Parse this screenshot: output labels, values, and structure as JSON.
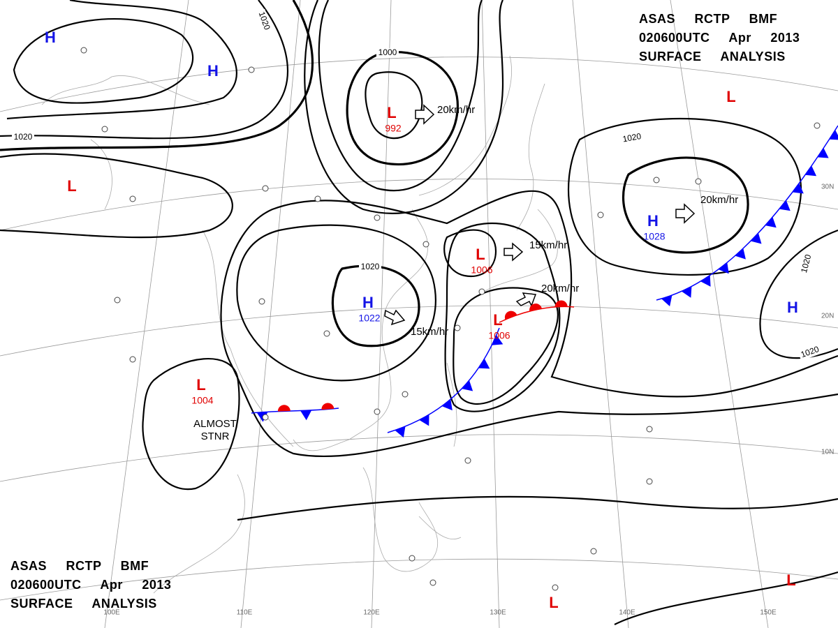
{
  "header": {
    "line1": "ASAS RCTP BMF",
    "line2": "020600UTC Apr 2013",
    "line3": "SURFACE ANALYSIS"
  },
  "centers": [
    {
      "symbol": "H"
    },
    {
      "symbol": "H"
    },
    {
      "symbol": "L",
      "pressure": 992
    },
    {
      "symbol": "L"
    },
    {
      "symbol": "L"
    },
    {
      "symbol": "L",
      "pressure": 1006
    },
    {
      "symbol": "H",
      "pressure": 1022
    },
    {
      "symbol": "L",
      "pressure": 1006
    },
    {
      "symbol": "H",
      "pressure": 1028
    },
    {
      "symbol": "L",
      "pressure": 1004
    },
    {
      "symbol": "H"
    },
    {
      "symbol": "L"
    },
    {
      "symbol": "L"
    }
  ],
  "isobar_labels": [
    1020,
    1000,
    1020,
    1020,
    1020,
    1020,
    1020
  ],
  "motions": [
    "20km/hr",
    "20km/hr",
    "15km/hr",
    "20km/hr",
    "15km/hr"
  ],
  "annotation": [
    "ALMOST",
    "STNR"
  ],
  "longitudes": [
    "100E",
    "110E",
    "120E",
    "130E",
    "140E",
    "150E"
  ],
  "latitudes": [
    "30N",
    "20N",
    "10N"
  ]
}
